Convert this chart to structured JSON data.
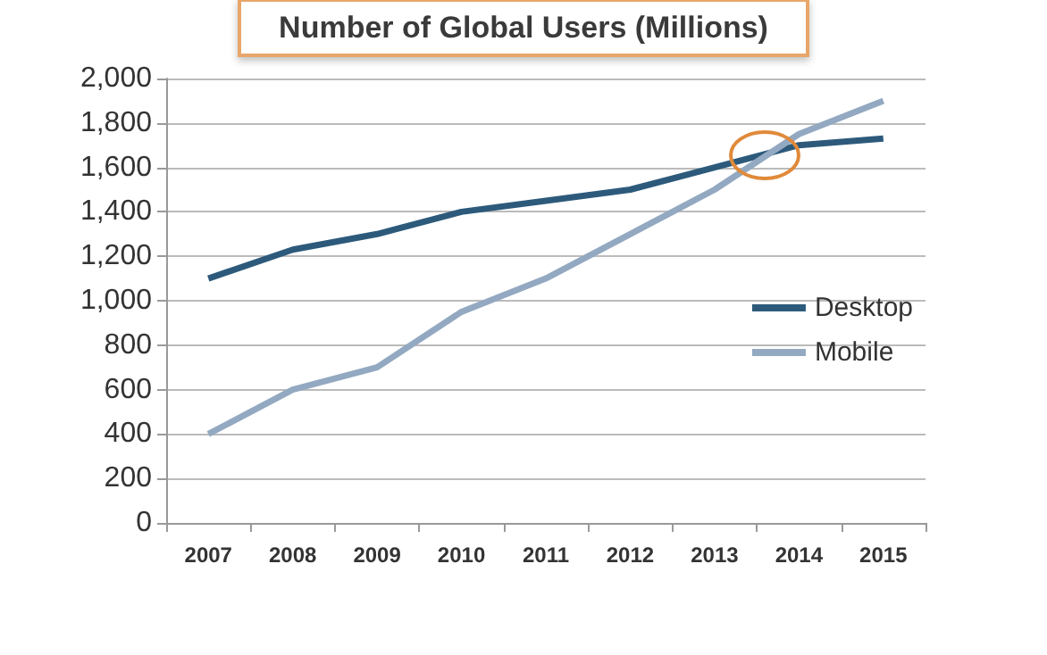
{
  "chart_data": {
    "type": "line",
    "title": "Number of Global Users (Millions)",
    "categories": [
      "2007",
      "2008",
      "2009",
      "2010",
      "2011",
      "2012",
      "2013",
      "2014",
      "2015"
    ],
    "series": [
      {
        "name": "Desktop",
        "color": "#2d5a7b",
        "values": [
          1100,
          1230,
          1300,
          1400,
          1450,
          1500,
          1600,
          1700,
          1730
        ]
      },
      {
        "name": "Mobile",
        "color": "#93a9c1",
        "values": [
          400,
          600,
          700,
          950,
          1100,
          1300,
          1500,
          1750,
          1900
        ]
      }
    ],
    "ylim": [
      0,
      2000
    ],
    "yticks": [
      0,
      200,
      400,
      600,
      800,
      {
        "value": 1000,
        "label": "1,000"
      },
      {
        "value": 1200,
        "label": "1,200"
      },
      {
        "value": 1400,
        "label": "1,400"
      },
      {
        "value": 1600,
        "label": "1,600"
      },
      {
        "value": 1800,
        "label": "1,800"
      },
      {
        "value": 2000,
        "label": "2,000"
      }
    ],
    "grid": "y",
    "legend": "right",
    "marker": "none",
    "line_style": "solid"
  }
}
